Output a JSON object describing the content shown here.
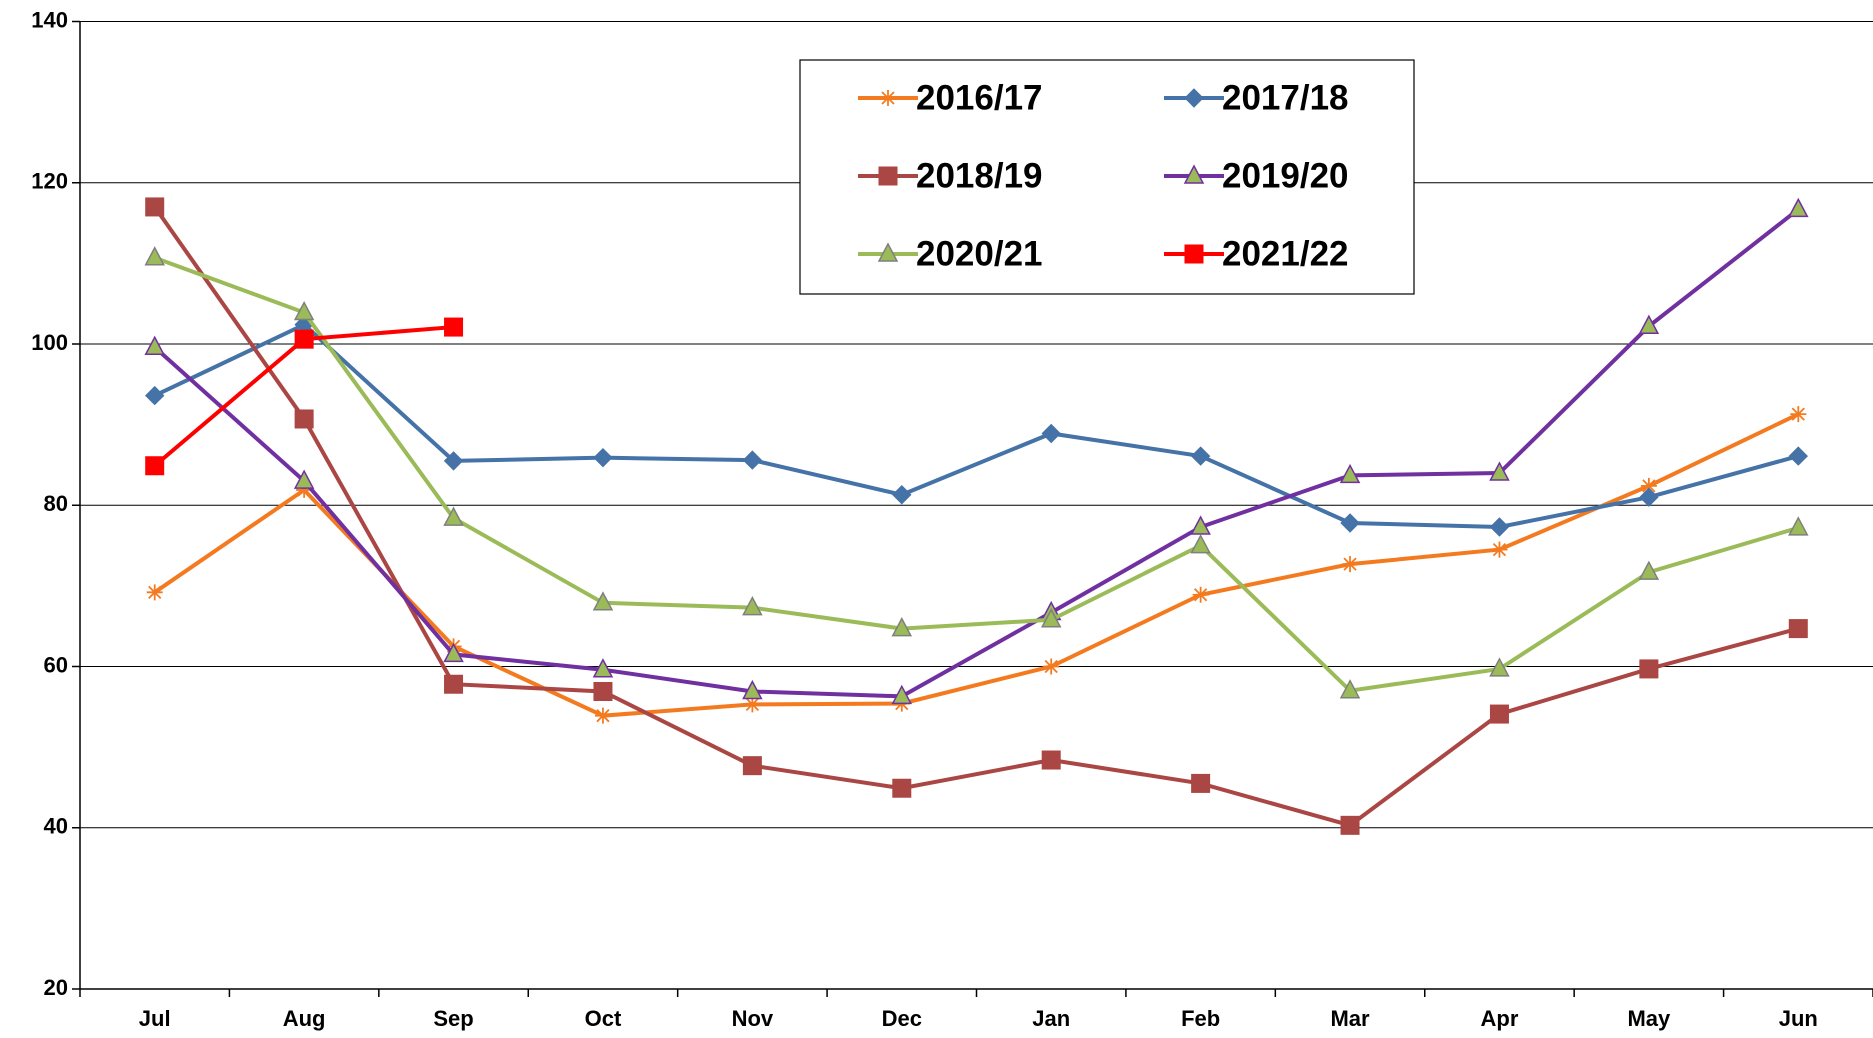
{
  "chart_data": {
    "type": "line",
    "categories": [
      "Jul",
      "Aug",
      "Sep",
      "Oct",
      "Nov",
      "Dec",
      "Jan",
      "Feb",
      "Mar",
      "Apr",
      "May",
      "Jun"
    ],
    "series": [
      {
        "name": "2016/17",
        "color": "#f47a20",
        "marker": "asterisk",
        "values": [
          69.2,
          81.9,
          62.5,
          53.9,
          55.3,
          55.4,
          60.0,
          68.9,
          72.7,
          74.5,
          82.4,
          91.3
        ]
      },
      {
        "name": "2017/18",
        "color": "#4572a7",
        "marker": "diamond",
        "values": [
          93.6,
          102.4,
          85.5,
          85.9,
          85.6,
          81.3,
          88.9,
          86.1,
          77.8,
          77.3,
          81.0,
          86.1
        ]
      },
      {
        "name": "2018/19",
        "color": "#aa4643",
        "marker": "square",
        "values": [
          117.0,
          90.7,
          57.8,
          56.9,
          47.7,
          44.9,
          48.4,
          45.5,
          40.3,
          54.1,
          59.7,
          64.7
        ]
      },
      {
        "name": "2019/20",
        "color": "#7030a0",
        "marker": "triangle",
        "values": [
          99.6,
          83.0,
          61.5,
          59.6,
          56.9,
          56.3,
          66.7,
          77.3,
          83.7,
          84.0,
          102.2,
          116.7
        ]
      },
      {
        "name": "2020/21",
        "color": "#9bbb59",
        "marker": "triangle",
        "values": [
          110.7,
          103.9,
          78.4,
          67.9,
          67.3,
          64.7,
          65.8,
          75.0,
          57.0,
          59.7,
          71.7,
          77.2
        ]
      },
      {
        "name": "2021/22",
        "color": "#ff0000",
        "marker": "square",
        "values": [
          84.9,
          100.6,
          102.1,
          null,
          null,
          null,
          null,
          null,
          null,
          null,
          null,
          null
        ]
      }
    ],
    "ylim": [
      20,
      140
    ],
    "yticks": [
      20,
      40,
      60,
      80,
      100,
      120,
      140
    ],
    "grid": true,
    "legend": "top"
  }
}
